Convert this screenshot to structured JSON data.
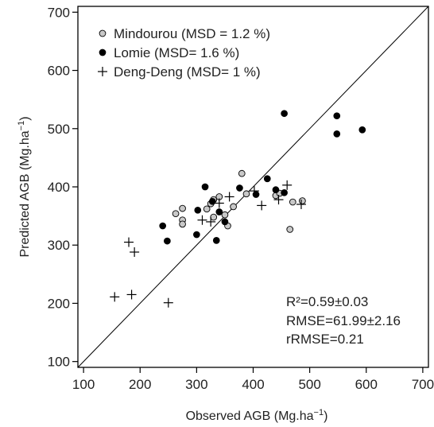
{
  "chart_data": {
    "type": "scatter",
    "xlabel": "Observed AGB (Mg.ha",
    "xlabel_sup": "−1",
    "xlabel_close": ")",
    "ylabel": "Predicted AGB (Mg.ha",
    "ylabel_sup": "−1",
    "ylabel_close": ")",
    "xlim": [
      90,
      710
    ],
    "ylim": [
      90,
      710
    ],
    "xticks": [
      100,
      200,
      300,
      400,
      500,
      600,
      700
    ],
    "yticks": [
      100,
      200,
      300,
      400,
      500,
      600,
      700
    ],
    "reference_line": "1:1",
    "legend_placement": "top-left",
    "series": [
      {
        "name": "Mindourou (MSD = 1.2 %)",
        "marker": "circle-grey",
        "color": "#c8c8c8",
        "points": [
          [
            263,
            354
          ],
          [
            275,
            343
          ],
          [
            275,
            336
          ],
          [
            275,
            363
          ],
          [
            318,
            362
          ],
          [
            325,
            371
          ],
          [
            330,
            348
          ],
          [
            330,
            378
          ],
          [
            340,
            383
          ],
          [
            350,
            352
          ],
          [
            355,
            333
          ],
          [
            365,
            366
          ],
          [
            380,
            423
          ],
          [
            388,
            388
          ],
          [
            440,
            385
          ],
          [
            447,
            389
          ],
          [
            465,
            327
          ],
          [
            470,
            374
          ],
          [
            487,
            376
          ]
        ]
      },
      {
        "name": "Lomie (MSD= 1.6 %)",
        "marker": "circle-black",
        "color": "#000000",
        "points": [
          [
            240,
            333
          ],
          [
            248,
            307
          ],
          [
            300,
            318
          ],
          [
            302,
            360
          ],
          [
            315,
            400
          ],
          [
            328,
            375
          ],
          [
            335,
            308
          ],
          [
            340,
            357
          ],
          [
            350,
            340
          ],
          [
            376,
            398
          ],
          [
            405,
            387
          ],
          [
            425,
            414
          ],
          [
            440,
            395
          ],
          [
            455,
            390
          ],
          [
            455,
            526
          ],
          [
            548,
            522
          ],
          [
            548,
            491
          ],
          [
            593,
            498
          ]
        ]
      },
      {
        "name": "Deng-Deng (MSD= 1 %)",
        "marker": "plus",
        "color": "#000000",
        "points": [
          [
            155,
            211
          ],
          [
            180,
            305
          ],
          [
            185,
            215
          ],
          [
            190,
            288
          ],
          [
            250,
            201
          ],
          [
            310,
            343
          ],
          [
            325,
            340
          ],
          [
            340,
            372
          ],
          [
            358,
            383
          ],
          [
            402,
            393
          ],
          [
            415,
            368
          ],
          [
            445,
            378
          ],
          [
            460,
            403
          ],
          [
            485,
            370
          ]
        ]
      }
    ],
    "annotations": {
      "r2": "R²=0.59±0.03",
      "rmse": "RMSE=61.99±2.16",
      "rrmse": "rRMSE=0.21"
    }
  }
}
